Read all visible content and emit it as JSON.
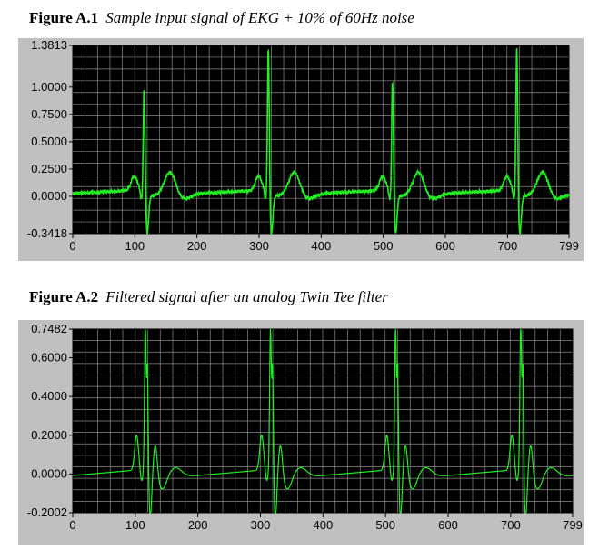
{
  "figures": [
    {
      "number": "Figure A.1",
      "caption": "Sample input signal of EKG + 10% of 60Hz noise"
    },
    {
      "number": "Figure A.2",
      "caption": "Filtered signal after an analog Twin Tee filter"
    }
  ],
  "colors": {
    "trace": "#22ee22",
    "plot_bg": "#000000",
    "grid": "#8a8a8a",
    "panel_bg": "#c0c0c0"
  },
  "chart_data": [
    {
      "type": "line",
      "title": "Sample input signal of EKG + 10% of 60Hz noise",
      "xlim": [
        0,
        799
      ],
      "ylim": [
        -0.3418,
        1.3813
      ],
      "x_ticks": [
        "0",
        "100",
        "200",
        "300",
        "400",
        "500",
        "600",
        "700",
        "799"
      ],
      "y_ticks": [
        "1.3813",
        "1.0000",
        "0.7500",
        "0.5000",
        "0.2500",
        "0.0000",
        "-0.3418"
      ],
      "grid": true,
      "noise": 0.015,
      "beats": [
        {
          "r_x": 115,
          "r_peak": 1.0
        },
        {
          "r_x": 315,
          "r_peak": 1.38
        },
        {
          "r_x": 515,
          "r_peak": 1.08
        },
        {
          "r_x": 715,
          "r_peak": 1.38
        }
      ]
    },
    {
      "type": "line",
      "title": "Filtered signal after an analog Twin Tee filter",
      "xlim": [
        0,
        799
      ],
      "ylim": [
        -0.2002,
        0.7482
      ],
      "x_ticks": [
        "0",
        "100",
        "200",
        "300",
        "400",
        "500",
        "600",
        "700",
        "799"
      ],
      "y_ticks": [
        "0.7482",
        "0.6000",
        "0.4000",
        "0.2000",
        "0.0000",
        "-0.2002"
      ],
      "grid": true,
      "noise": 0,
      "beats": [
        {
          "r_x": 118,
          "r_peak": 0.73
        },
        {
          "r_x": 318,
          "r_peak": 0.72
        },
        {
          "r_x": 518,
          "r_peak": 0.73
        },
        {
          "r_x": 718,
          "r_peak": 0.74
        }
      ]
    }
  ]
}
